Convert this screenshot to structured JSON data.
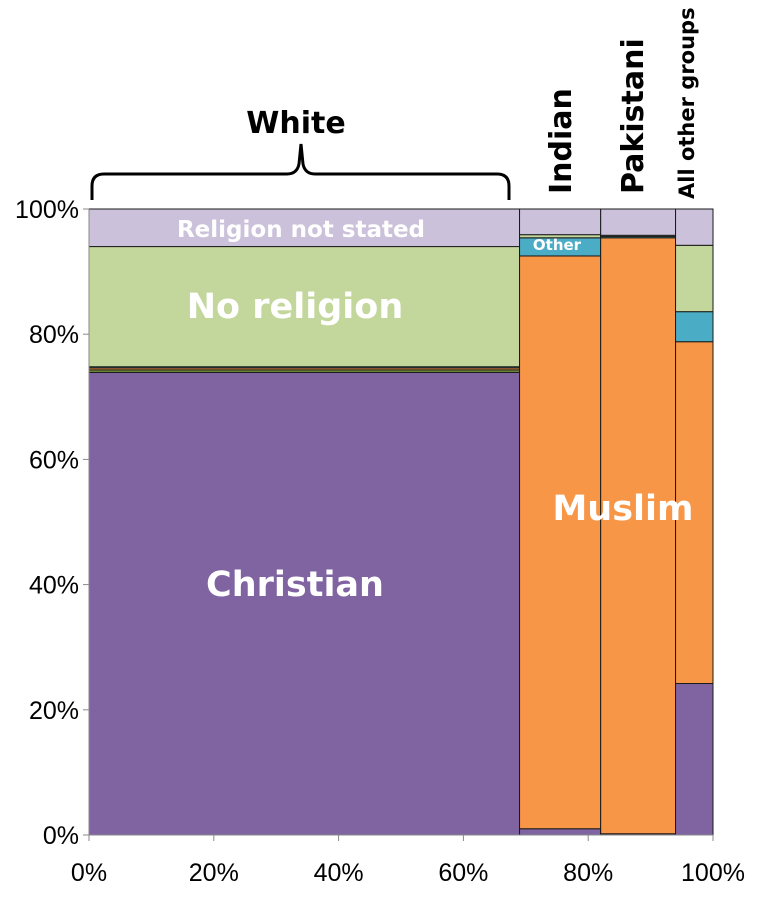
{
  "chart_data": {
    "type": "mosaic",
    "xlim": [
      0,
      100
    ],
    "ylim": [
      0,
      100
    ],
    "x_ticks": [
      "0%",
      "20%",
      "40%",
      "60%",
      "80%",
      "100%"
    ],
    "y_ticks": [
      "0%",
      "20%",
      "40%",
      "60%",
      "80%",
      "100%"
    ],
    "grid": false,
    "legend": "none",
    "categories": [
      {
        "id": "christian",
        "color": "#8064A2"
      },
      {
        "id": "muslim",
        "color": "#F79646"
      },
      {
        "id": "other_religion",
        "color": "#4BACC6"
      },
      {
        "id": "no_religion",
        "color": "#C3D69B"
      },
      {
        "id": "not_stated",
        "color": "#CCC1DA"
      },
      {
        "id": "minor",
        "color": "#77933C"
      }
    ],
    "groups": [
      {
        "name": "White",
        "width_pct": 69,
        "segments": [
          {
            "category": "christian",
            "pct": 73.9
          },
          {
            "category": "minor",
            "pct": 0.4
          },
          {
            "category": "muslim",
            "pct": 0.3
          },
          {
            "category": "other_religion",
            "pct": 0.2
          },
          {
            "category": "no_religion",
            "pct": 19.2
          },
          {
            "category": "not_stated",
            "pct": 6.0
          }
        ]
      },
      {
        "name": "Indian",
        "width_pct": 13,
        "segments": [
          {
            "category": "christian",
            "pct": 1.0
          },
          {
            "category": "muslim",
            "pct": 91.5
          },
          {
            "category": "other_religion",
            "pct": 2.9
          },
          {
            "category": "no_religion",
            "pct": 0.5
          },
          {
            "category": "not_stated",
            "pct": 4.1
          }
        ]
      },
      {
        "name": "Pakistani",
        "width_pct": 12,
        "segments": [
          {
            "category": "christian",
            "pct": 0.2
          },
          {
            "category": "muslim",
            "pct": 95.2
          },
          {
            "category": "other_religion",
            "pct": 0.2
          },
          {
            "category": "no_religion",
            "pct": 0.2
          },
          {
            "category": "not_stated",
            "pct": 4.2
          }
        ]
      },
      {
        "name": "All other groups",
        "width_pct": 6,
        "segments": [
          {
            "category": "christian",
            "pct": 24.2
          },
          {
            "category": "muslim",
            "pct": 54.6
          },
          {
            "category": "other_religion",
            "pct": 4.8
          },
          {
            "category": "no_religion",
            "pct": 10.6
          },
          {
            "category": "not_stated",
            "pct": 5.8
          }
        ]
      }
    ],
    "annotations": {
      "christian": "Christian",
      "muslim": "Muslim",
      "no_religion": "No religion",
      "not_stated": "Religion not stated",
      "other_religion": "Other"
    }
  }
}
